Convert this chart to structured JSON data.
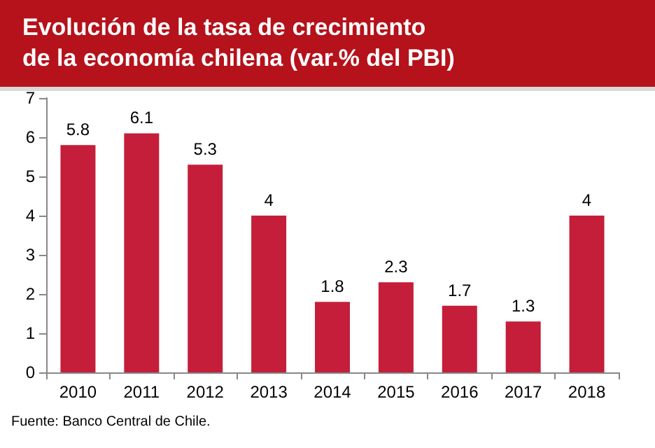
{
  "chart_data": {
    "type": "bar",
    "title": "Evolución de la tasa de crecimiento de la economía chilena (var.% del PBI)",
    "categories": [
      "2010",
      "2011",
      "2012",
      "2013",
      "2014",
      "2015",
      "2016",
      "2017",
      "2018"
    ],
    "values": [
      5.8,
      6.1,
      5.3,
      4,
      1.8,
      2.3,
      1.7,
      1.3,
      4
    ],
    "color": "#c41e3a",
    "ylim": [
      0,
      7
    ],
    "yticks": [
      0,
      1,
      2,
      3,
      4,
      5,
      6,
      7
    ],
    "grid": false,
    "data_labels": true,
    "annotations": [
      "Fuente: Banco Central de Chile."
    ]
  }
}
